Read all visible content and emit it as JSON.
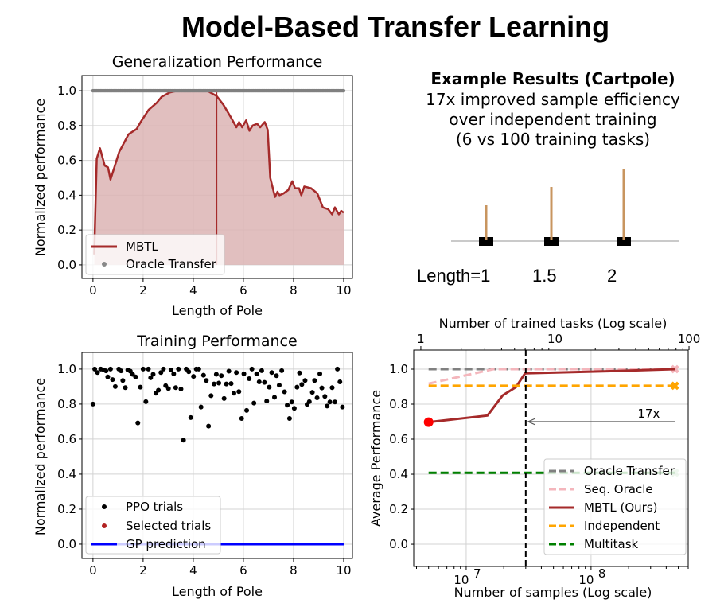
{
  "title": "Model-Based Transfer Learning",
  "example": {
    "heading": "Example Results (Cartpole)",
    "lines": [
      "17x improved sample efficiency",
      "over independent training",
      "(6 vs 100 training tasks)"
    ],
    "cartpole_labels": [
      "Length=1",
      "1.5",
      "2"
    ],
    "pole_lengths": [
      1,
      1.5,
      2
    ]
  },
  "chart_data": [
    {
      "type": "line",
      "title": "Generalization Performance",
      "xlabel": "Length of Pole",
      "ylabel": "Normalized performance",
      "xlim": [
        -0.44,
        10.35
      ],
      "ylim": [
        -0.078,
        1.087
      ],
      "xticks": [
        0,
        2,
        4,
        6,
        8,
        10
      ],
      "yticks": [
        "0.0",
        "0.2",
        "0.4",
        "0.6",
        "0.8",
        "1.0"
      ],
      "grid": true,
      "legend": "bottom-left",
      "series": [
        {
          "name": "MBTL",
          "type": "line-filled",
          "color": "#a52a2a",
          "fill": "#dcb4b4",
          "x": [
            0.05,
            0.15,
            0.28,
            0.47,
            0.6,
            0.7,
            1.05,
            1.42,
            1.74,
            1.9,
            2.22,
            2.54,
            2.74,
            3.06,
            3.38,
            4.0,
            4.55,
            4.93,
            5.2,
            5.51,
            5.72,
            5.83,
            5.95,
            6.11,
            6.24,
            6.37,
            6.55,
            6.67,
            6.85,
            6.97,
            7.07,
            7.26,
            7.36,
            7.44,
            7.6,
            7.79,
            7.95,
            8.06,
            8.22,
            8.31,
            8.43,
            8.7,
            8.95,
            9.17,
            9.38,
            9.54,
            9.65,
            9.81,
            9.9,
            10.0
          ],
          "y": [
            0.06,
            0.61,
            0.67,
            0.57,
            0.56,
            0.49,
            0.65,
            0.75,
            0.78,
            0.82,
            0.89,
            0.93,
            0.965,
            0.99,
            1.0,
            1.0,
            1.0,
            0.97,
            0.92,
            0.845,
            0.79,
            0.82,
            0.79,
            0.83,
            0.77,
            0.8,
            0.81,
            0.79,
            0.82,
            0.775,
            0.5,
            0.39,
            0.42,
            0.4,
            0.41,
            0.43,
            0.48,
            0.44,
            0.44,
            0.4,
            0.45,
            0.44,
            0.41,
            0.33,
            0.32,
            0.29,
            0.33,
            0.29,
            0.31,
            0.3
          ]
        },
        {
          "name": "Oracle Transfer",
          "type": "scatter",
          "color": "#808080",
          "x_range": [
            0,
            10
          ],
          "y": 1.0
        }
      ],
      "marker_line_x": 4.94
    },
    {
      "type": "scatter",
      "title": "Training Performance",
      "xlabel": "Length of Pole",
      "ylabel": "Normalized performance",
      "xlim": [
        -0.44,
        10.35
      ],
      "ylim": [
        -0.082,
        1.095
      ],
      "xticks": [
        0,
        2,
        4,
        6,
        8,
        10
      ],
      "yticks": [
        "0.0",
        "0.2",
        "0.4",
        "0.6",
        "0.8",
        "1.0"
      ],
      "grid": true,
      "legend": "bottom-left",
      "series": [
        {
          "name": "PPO trials",
          "color": "#000000",
          "points": [
            [
              0.0,
              0.8
            ],
            [
              0.07,
              1.0
            ],
            [
              0.18,
              0.98
            ],
            [
              0.31,
              1.0
            ],
            [
              0.43,
              0.995
            ],
            [
              0.52,
              0.99
            ],
            [
              0.59,
              0.955
            ],
            [
              0.7,
              1.0
            ],
            [
              0.78,
              0.94
            ],
            [
              0.89,
              0.9
            ],
            [
              1.03,
              1.0
            ],
            [
              1.12,
              0.99
            ],
            [
              1.19,
              0.935
            ],
            [
              1.29,
              0.894
            ],
            [
              1.39,
              0.995
            ],
            [
              1.49,
              0.988
            ],
            [
              1.58,
              0.97
            ],
            [
              1.7,
              0.955
            ],
            [
              1.79,
              0.692
            ],
            [
              1.89,
              0.897
            ],
            [
              2.0,
              1.0
            ],
            [
              2.11,
              0.814
            ],
            [
              2.21,
              1.0
            ],
            [
              2.3,
              0.95
            ],
            [
              2.4,
              0.97
            ],
            [
              2.51,
              0.862
            ],
            [
              2.61,
              0.879
            ],
            [
              2.71,
              0.98
            ],
            [
              2.81,
              1.0
            ],
            [
              2.9,
              0.905
            ],
            [
              3.01,
              0.889
            ],
            [
              3.11,
              0.995
            ],
            [
              3.22,
              0.973
            ],
            [
              3.3,
              0.894
            ],
            [
              3.41,
              1.0
            ],
            [
              3.51,
              0.886
            ],
            [
              3.61,
              0.594
            ],
            [
              3.72,
              1.0
            ],
            [
              3.82,
              0.985
            ],
            [
              3.9,
              0.723
            ],
            [
              4.01,
              0.958
            ],
            [
              4.12,
              1.0
            ],
            [
              4.22,
              1.0
            ],
            [
              4.31,
              0.783
            ],
            [
              4.41,
              0.965
            ],
            [
              4.52,
              0.935
            ],
            [
              4.61,
              0.674
            ],
            [
              4.71,
              0.848
            ],
            [
              4.83,
              0.915
            ],
            [
              4.92,
              0.97
            ],
            [
              5.02,
              0.92
            ],
            [
              5.12,
              0.962
            ],
            [
              5.23,
              0.832
            ],
            [
              5.32,
              0.915
            ],
            [
              5.42,
              0.988
            ],
            [
              5.51,
              0.917
            ],
            [
              5.62,
              0.862
            ],
            [
              5.72,
              0.98
            ],
            [
              5.82,
              0.871
            ],
            [
              5.93,
              0.718
            ],
            [
              6.02,
              0.973
            ],
            [
              6.13,
              0.764
            ],
            [
              6.23,
              0.945
            ],
            [
              6.34,
              1.0
            ],
            [
              6.42,
              0.806
            ],
            [
              6.53,
              0.973
            ],
            [
              6.63,
              0.927
            ],
            [
              6.73,
              0.991
            ],
            [
              6.84,
              0.924
            ],
            [
              6.93,
              0.817
            ],
            [
              7.03,
              0.897
            ],
            [
              7.13,
              0.98
            ],
            [
              7.24,
              0.839
            ],
            [
              7.32,
              0.962
            ],
            [
              7.43,
              0.908
            ],
            [
              7.53,
              0.991
            ],
            [
              7.64,
              0.87
            ],
            [
              7.75,
              0.794
            ],
            [
              7.84,
              0.718
            ],
            [
              7.93,
              0.812
            ],
            [
              8.03,
              0.776
            ],
            [
              8.14,
              0.897
            ],
            [
              8.24,
              0.978
            ],
            [
              8.33,
              0.912
            ],
            [
              8.46,
              0.935
            ],
            [
              8.54,
              0.798
            ],
            [
              8.63,
              0.814
            ],
            [
              8.75,
              0.867
            ],
            [
              8.84,
              0.935
            ],
            [
              8.94,
              0.836
            ],
            [
              9.05,
              0.973
            ],
            [
              9.13,
              0.892
            ],
            [
              9.25,
              0.844
            ],
            [
              9.34,
              0.789
            ],
            [
              9.45,
              0.812
            ],
            [
              9.54,
              0.894
            ],
            [
              9.65,
              0.812
            ],
            [
              9.75,
              1.0
            ],
            [
              9.85,
              0.927
            ],
            [
              9.95,
              0.783
            ]
          ]
        },
        {
          "name": "Selected trials",
          "color": "#b22222",
          "points": []
        },
        {
          "name": "GP prediction",
          "color": "#0000ff",
          "x": [
            0,
            10
          ],
          "y": [
            0,
            0
          ]
        }
      ]
    },
    {
      "type": "line",
      "xlabel": "Number of samples (Log scale)",
      "x2label": "Number of trained tasks (Log scale)",
      "ylabel": "Average Performance",
      "xscale": "log",
      "xlim": [
        3800000.0,
        600000000.0
      ],
      "x2lim": [
        0.885,
        98.6
      ],
      "xticks": [
        {
          "v": 10000000.0,
          "base": "10",
          "exp": "7"
        },
        {
          "v": 100000000.0,
          "base": "10",
          "exp": "8"
        }
      ],
      "x2ticks": [
        {
          "v": 1,
          "label": "1"
        },
        {
          "v": 10,
          "label": "10"
        },
        {
          "v": 100,
          "label": "100"
        }
      ],
      "ylim": [
        -0.127,
        1.109
      ],
      "yticks": [
        "0.0",
        "0.2",
        "0.4",
        "0.6",
        "0.8",
        "1.0"
      ],
      "grid": true,
      "legend": "bottom-right",
      "series": [
        {
          "name": "Oracle Transfer",
          "style": "dashed",
          "color": "#808080",
          "x": [
            5000000.0,
            470000000.0
          ],
          "y": [
            1.0,
            1.0
          ]
        },
        {
          "name": "Seq. Oracle",
          "style": "dashed",
          "color": "#f4b6bc",
          "x": [
            5000000.0,
            16500000.0,
            470000000.0
          ],
          "y": [
            0.917,
            1.0,
            1.0
          ],
          "end_marker": "x"
        },
        {
          "name": "MBTL (Ours)",
          "style": "solid",
          "color": "#a52a2a",
          "x": [
            5000000.0,
            14800000.0,
            19600000.0,
            25000000.0,
            29600000.0,
            135000000.0,
            470000000.0
          ],
          "y": [
            0.697,
            0.735,
            0.85,
            0.897,
            0.976,
            0.988,
            1.0
          ],
          "start_marker": "dot",
          "start_color": "#ff0000"
        },
        {
          "name": "Independent",
          "style": "dashed",
          "color": "#ffa500",
          "x": [
            5000000.0,
            470000000.0
          ],
          "y": [
            0.905,
            0.905
          ],
          "end_marker": "x"
        },
        {
          "name": "Multitask",
          "style": "dashed",
          "color": "#008000",
          "x": [
            5000000.0,
            470000000.0
          ],
          "y": [
            0.408,
            0.408
          ],
          "end_marker": "x"
        }
      ],
      "vline_samples": 30000000.0,
      "annotation": {
        "text": "17x",
        "arrow_from": 470000000.0,
        "arrow_to": 30000000.0,
        "y": 0.7
      }
    }
  ]
}
